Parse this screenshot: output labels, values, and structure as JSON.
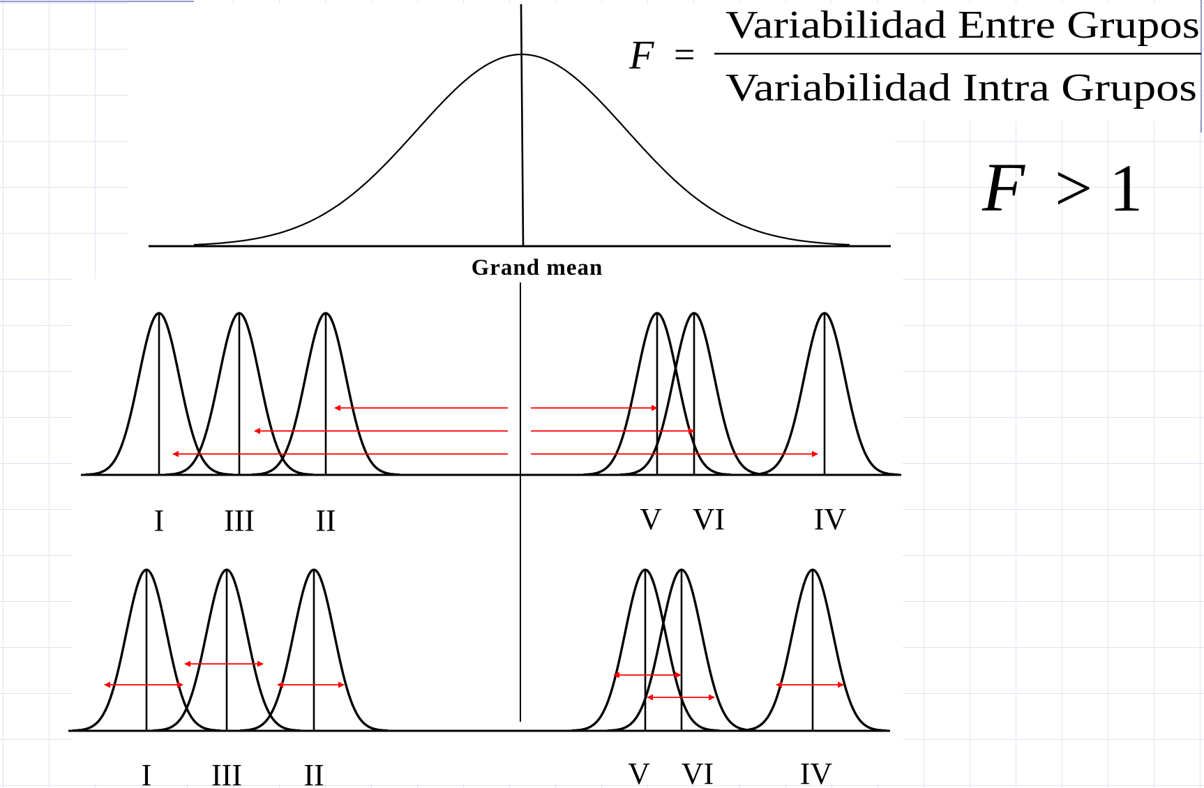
{
  "formula": {
    "lhs": "F",
    "equals": "=",
    "numerator": "Variabilidad Entre Grupos",
    "denominator": "Variabilidad Intra Grupos"
  },
  "inequality": {
    "symbol": "F",
    "rest": "> 1"
  },
  "top_axis_label": "Grand mean",
  "panels": [
    {
      "name": "between-groups",
      "group_labels": [
        "I",
        "III",
        "II",
        "V",
        "VI",
        "IV"
      ]
    },
    {
      "name": "within-groups",
      "group_labels": [
        "I",
        "III",
        "II",
        "V",
        "VI",
        "IV"
      ]
    }
  ],
  "colors": {
    "arrow": "#ff0000",
    "grid": "#dfe3f1",
    "ink": "#000000"
  }
}
